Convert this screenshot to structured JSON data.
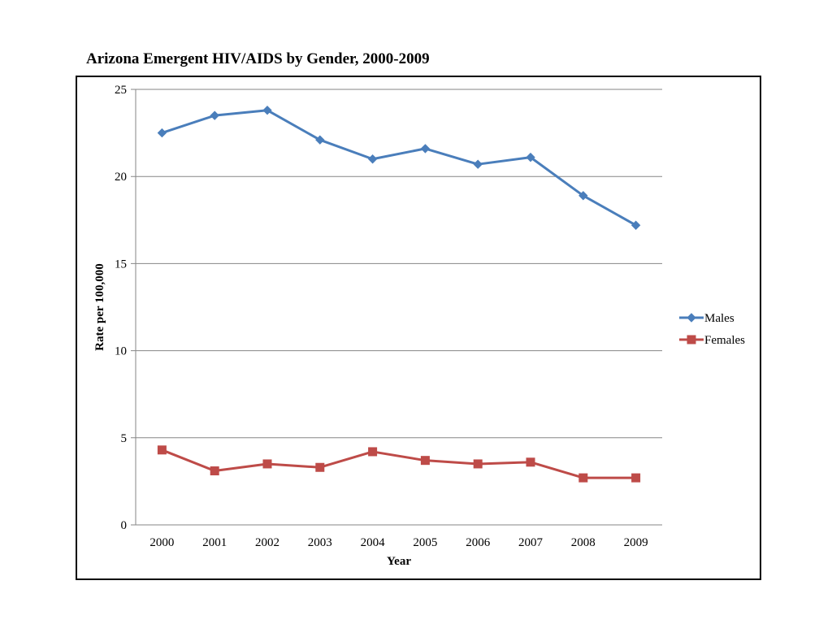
{
  "page": {
    "title": "Arizona Emergent HIV/AIDS by Gender, 2000-2009"
  },
  "chart_data": {
    "type": "line",
    "title": "Arizona Emergent HIV/AIDS by Gender, 2000-2009",
    "xlabel": "Year",
    "ylabel": "Rate per 100,000",
    "categories": [
      "2000",
      "2001",
      "2002",
      "2003",
      "2004",
      "2005",
      "2006",
      "2007",
      "2008",
      "2009"
    ],
    "ylim": [
      0,
      25
    ],
    "yticks": [
      0,
      5,
      10,
      15,
      20,
      25
    ],
    "grid": true,
    "legend": "right",
    "series": [
      {
        "name": "Males",
        "color": "#4a7ebb",
        "marker": "diamond",
        "values": [
          22.5,
          23.5,
          23.8,
          22.1,
          21.0,
          21.6,
          20.7,
          21.1,
          18.9,
          17.2
        ]
      },
      {
        "name": "Females",
        "color": "#be4b48",
        "marker": "square",
        "values": [
          4.3,
          3.1,
          3.5,
          3.3,
          4.2,
          3.7,
          3.5,
          3.6,
          2.7,
          2.7
        ]
      }
    ]
  }
}
